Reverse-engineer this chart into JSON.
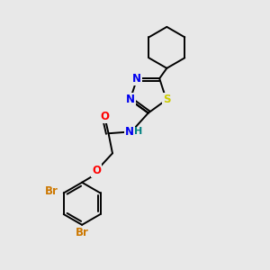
{
  "bg_color": "#e8e8e8",
  "bond_color": "#000000",
  "atom_colors": {
    "N": "#0000ee",
    "S": "#cccc00",
    "O": "#ff0000",
    "Br": "#cc7700",
    "C": "#000000",
    "H": "#008080"
  },
  "lw": 1.4,
  "font_size": 8.5
}
